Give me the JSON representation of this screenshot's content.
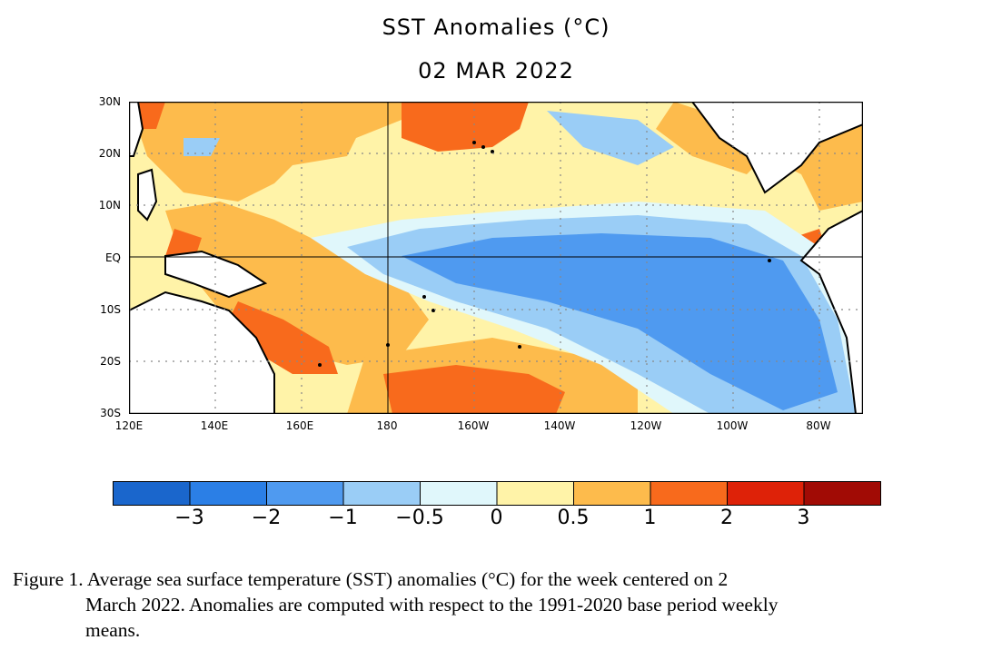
{
  "title": "SST Anomalies (°C)",
  "subtitle": "02 MAR 2022",
  "lat_labels": [
    "30N",
    "20N",
    "10N",
    "EQ",
    "10S",
    "20S",
    "30S"
  ],
  "lon_labels": [
    "120E",
    "140E",
    "160E",
    "180",
    "160W",
    "140W",
    "120W",
    "100W",
    "80W"
  ],
  "colorbar": {
    "colors": [
      "#1a66cc",
      "#2b7fe6",
      "#4f9af0",
      "#9acdf6",
      "#e0f7fb",
      "#fff3a8",
      "#fdbb4c",
      "#f86a1c",
      "#de2208",
      "#a10b05"
    ],
    "tick_labels": [
      "−3",
      "−2",
      "−1",
      "−0.5",
      "0",
      "0.5",
      "1",
      "2",
      "3"
    ]
  },
  "caption_line1": "Figure 1. Average sea surface temperature (SST) anomalies (°C) for the week centered on 2",
  "caption_line2": "March 2022.  Anomalies are computed with respect to the 1991-2020 base period weekly",
  "caption_line3": "means."
}
